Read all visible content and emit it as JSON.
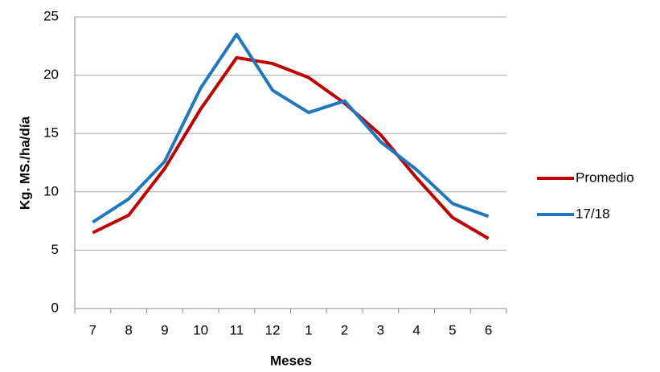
{
  "chart_data": {
    "type": "line",
    "x_label": "Meses",
    "y_label": "Kg. MS./ha/día",
    "categories": [
      "7",
      "8",
      "9",
      "10",
      "11",
      "12",
      "1",
      "2",
      "3",
      "4",
      "5",
      "6"
    ],
    "series": [
      {
        "name": "Promedio",
        "color": "#c00000",
        "values": [
          6.5,
          8.0,
          12.0,
          17.1,
          21.5,
          21.0,
          19.8,
          17.6,
          14.9,
          11.2,
          7.8,
          6.0
        ]
      },
      {
        "name": "17/18",
        "color": "#1f77c0",
        "values": [
          7.4,
          9.4,
          12.6,
          18.9,
          23.5,
          18.7,
          16.8,
          17.8,
          14.3,
          11.9,
          9.0,
          7.9
        ]
      }
    ],
    "ylim": [
      0,
      25
    ],
    "yticks": [
      0,
      5,
      10,
      15,
      20,
      25
    ],
    "grid": true,
    "legend": "right"
  }
}
